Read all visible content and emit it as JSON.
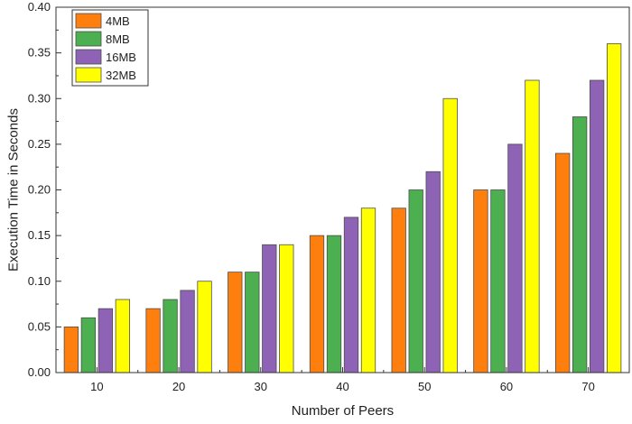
{
  "chart_data": {
    "type": "bar",
    "title": "",
    "xlabel": "Number of Peers",
    "ylabel": "Execution Time in Seconds",
    "categories": [
      "10",
      "20",
      "30",
      "40",
      "50",
      "60",
      "70"
    ],
    "series": [
      {
        "name": "4MB",
        "color": "#ff7f0e",
        "values": [
          0.05,
          0.07,
          0.11,
          0.15,
          0.18,
          0.2,
          0.24
        ]
      },
      {
        "name": "8MB",
        "color": "#4caf50",
        "values": [
          0.06,
          0.08,
          0.11,
          0.15,
          0.2,
          0.2,
          0.28
        ]
      },
      {
        "name": "16MB",
        "color": "#8e63b5",
        "values": [
          0.07,
          0.09,
          0.14,
          0.17,
          0.22,
          0.25,
          0.32
        ]
      },
      {
        "name": "32MB",
        "color": "#ffff00",
        "values": [
          0.08,
          0.1,
          0.14,
          0.18,
          0.3,
          0.32,
          0.36
        ]
      }
    ],
    "ylim": [
      0,
      0.4
    ],
    "yticks": [
      "0.00",
      "0.05",
      "0.10",
      "0.15",
      "0.20",
      "0.25",
      "0.30",
      "0.35",
      "0.40"
    ],
    "grid": false,
    "legend_position": "top-left"
  }
}
